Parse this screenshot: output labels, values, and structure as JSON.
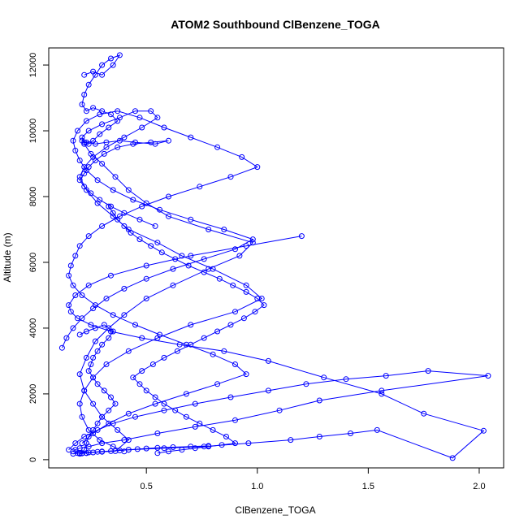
{
  "chart_data": {
    "type": "scatter",
    "title": "ATOM2 Southbound ClBenzene_TOGA",
    "xlabel": "ClBenzene_TOGA",
    "ylabel": "Altitude (m)",
    "xlim": [
      0.06,
      2.11
    ],
    "ylim": [
      -250,
      12520
    ],
    "xticks": [
      0.5,
      1.0,
      1.5,
      2.0
    ],
    "xtick_labels": [
      "0.5",
      "1.0",
      "1.5",
      "2.0"
    ],
    "yticks": [
      0,
      2000,
      4000,
      6000,
      8000,
      10000,
      12000
    ],
    "ytick_labels": [
      "0",
      "2000",
      "4000",
      "6000",
      "8000",
      "10000",
      "12000"
    ],
    "grid": false,
    "legend": "none",
    "series_style": "points-connected-by-lines",
    "color": "#0000ff",
    "series": [
      {
        "x": [
          0.17,
          0.2,
          0.24,
          0.28,
          0.36,
          0.42,
          0.37,
          0.3,
          0.26,
          0.22,
          0.2,
          0.23,
          0.27,
          0.33,
          0.4,
          0.5,
          0.62,
          0.78,
          0.92,
          0.98,
          0.78,
          0.6,
          0.5,
          0.42,
          0.36,
          0.3,
          0.25,
          0.22,
          0.21,
          0.24,
          0.3,
          0.38,
          0.45,
          0.52,
          0.55,
          0.48,
          0.4,
          0.32,
          0.26,
          0.22,
          0.2,
          0.23,
          0.28,
          0.35,
          0.42,
          0.55,
          0.66,
          0.8,
          0.95,
          1.02,
          0.9,
          0.7,
          0.55,
          0.42,
          0.32,
          0.26,
          0.22,
          0.2,
          0.21,
          0.24,
          0.29,
          0.35,
          0.4
        ],
        "y": [
          180,
          200,
          220,
          240,
          260,
          600,
          900,
          1300,
          1700,
          2100,
          2600,
          3100,
          3600,
          4000,
          4400,
          4900,
          5300,
          5800,
          6200,
          6600,
          7000,
          7400,
          7800,
          8200,
          8600,
          9000,
          9300,
          9600,
          9800,
          10000,
          10200,
          10400,
          10600,
          10600,
          10400,
          10100,
          9800,
          9500,
          9200,
          8900,
          8600,
          8200,
          7800,
          7400,
          7000,
          6600,
          6200,
          5800,
          5300,
          4900,
          4500,
          4100,
          3700,
          3300,
          2900,
          2500,
          2100,
          1700,
          1300,
          900,
          600,
          400,
          250
        ]
      },
      {
        "x": [
          0.15,
          0.18,
          0.22,
          0.28,
          0.35,
          0.45,
          0.58,
          0.72,
          0.88,
          1.05,
          1.22,
          1.4,
          1.58,
          1.77,
          2.04,
          1.56,
          1.28,
          1.1,
          0.9,
          0.72,
          0.55,
          0.4,
          0.3,
          0.24,
          0.2,
          0.18,
          0.17,
          0.19,
          0.23,
          0.3,
          0.42,
          0.58,
          0.76,
          0.96,
          1.15,
          1.28,
          1.42,
          1.54,
          1.88,
          2.02,
          1.75,
          1.56,
          1.3,
          1.05,
          0.85,
          0.65,
          0.48,
          0.34,
          0.25,
          0.19,
          0.16,
          0.15,
          0.18,
          0.24,
          0.34,
          0.5,
          0.7,
          0.95,
          1.2
        ],
        "y": [
          300,
          500,
          700,
          900,
          1100,
          1300,
          1500,
          1700,
          1900,
          2100,
          2300,
          2450,
          2550,
          2700,
          2550,
          2100,
          1800,
          1500,
          1200,
          1000,
          800,
          600,
          500,
          400,
          350,
          300,
          250,
          200,
          200,
          250,
          300,
          350,
          400,
          500,
          600,
          700,
          800,
          900,
          50,
          880,
          1400,
          2000,
          2500,
          3000,
          3300,
          3500,
          3700,
          3900,
          4100,
          4300,
          4500,
          4700,
          5000,
          5300,
          5600,
          5900,
          6200,
          6500,
          6800
        ]
      },
      {
        "x": [
          0.12,
          0.14,
          0.17,
          0.21,
          0.26,
          0.32,
          0.4,
          0.5,
          0.62,
          0.76,
          0.9,
          0.98,
          0.85,
          0.7,
          0.56,
          0.44,
          0.35,
          0.28,
          0.23,
          0.2,
          0.18,
          0.17,
          0.19,
          0.23,
          0.29,
          0.37,
          0.47,
          0.58,
          0.7,
          0.82,
          0.93,
          1.0,
          0.88,
          0.74,
          0.6,
          0.48,
          0.38,
          0.3,
          0.24,
          0.2,
          0.18,
          0.16,
          0.15,
          0.17,
          0.21,
          0.27,
          0.35,
          0.45,
          0.56,
          0.68,
          0.8,
          0.9,
          0.95,
          0.82,
          0.68,
          0.54,
          0.42,
          0.33,
          0.26,
          0.21
        ],
        "y": [
          3400,
          3700,
          4000,
          4300,
          4600,
          4900,
          5200,
          5500,
          5800,
          6100,
          6400,
          6700,
          7000,
          7300,
          7600,
          7900,
          8200,
          8500,
          8800,
          9100,
          9400,
          9700,
          10000,
          10300,
          10500,
          10600,
          10400,
          10100,
          9800,
          9500,
          9200,
          8900,
          8600,
          8300,
          8000,
          7700,
          7400,
          7100,
          6800,
          6500,
          6200,
          5900,
          5600,
          5300,
          5000,
          4700,
          4400,
          4100,
          3800,
          3500,
          3200,
          2900,
          2600,
          2300,
          2000,
          1700,
          1400,
          1100,
          800,
          500
        ]
      },
      {
        "x": [
          0.22,
          0.26,
          0.3,
          0.35,
          0.38,
          0.34,
          0.3,
          0.27,
          0.24,
          0.22,
          0.21,
          0.23,
          0.26,
          0.3,
          0.34,
          0.37,
          0.33,
          0.29,
          0.26,
          0.24,
          0.22,
          0.21,
          0.23,
          0.27,
          0.32,
          0.38,
          0.45,
          0.54,
          0.6,
          0.52,
          0.44,
          0.37,
          0.31,
          0.27,
          0.24,
          0.22,
          0.2,
          0.22,
          0.25,
          0.29,
          0.34,
          0.4,
          0.47,
          0.54
        ],
        "y": [
          11700,
          11800,
          11700,
          12000,
          12300,
          12200,
          12000,
          11700,
          11400,
          11100,
          10800,
          10600,
          10700,
          10600,
          10500,
          10300,
          10100,
          9900,
          9700,
          9600,
          9650,
          9700,
          9650,
          9600,
          9650,
          9700,
          9650,
          9600,
          9700,
          9650,
          9600,
          9500,
          9300,
          9100,
          8900,
          8700,
          8500,
          8300,
          8100,
          7900,
          7700,
          7500,
          7300,
          7100
        ]
      },
      {
        "x": [
          0.2,
          0.23,
          0.27,
          0.31,
          0.35,
          0.33,
          0.3,
          0.28,
          0.26,
          0.25,
          0.24,
          0.26,
          0.28,
          0.31,
          0.34,
          0.36,
          0.33,
          0.3,
          0.28,
          0.26,
          0.24,
          0.23,
          0.22,
          0.21,
          0.2,
          0.21,
          0.23,
          0.26,
          0.3,
          0.34,
          0.38,
          0.42,
          0.46,
          0.5,
          0.55,
          0.62,
          0.7,
          0.78
        ],
        "y": [
          3800,
          3900,
          4000,
          4100,
          3900,
          3700,
          3500,
          3300,
          3100,
          2900,
          2700,
          2500,
          2300,
          2100,
          1900,
          1700,
          1500,
          1300,
          1100,
          900,
          700,
          500,
          300,
          200,
          180,
          190,
          200,
          220,
          240,
          260,
          280,
          300,
          320,
          340,
          360,
          380,
          400,
          420
        ]
      },
      {
        "x": [
          0.55,
          0.6,
          0.66,
          0.72,
          0.78,
          0.84,
          0.9,
          0.86,
          0.8,
          0.74,
          0.68,
          0.63,
          0.58,
          0.54,
          0.5,
          0.47,
          0.44,
          0.48,
          0.53,
          0.58,
          0.64,
          0.7,
          0.76,
          0.82,
          0.88,
          0.94,
          0.99,
          1.03,
          1.0,
          0.95,
          0.89,
          0.83,
          0.76,
          0.69,
          0.63,
          0.57,
          0.52,
          0.47,
          0.43,
          0.4,
          0.37,
          0.35,
          0.33
        ],
        "y": [
          200,
          250,
          300,
          350,
          400,
          450,
          500,
          700,
          900,
          1100,
          1300,
          1500,
          1700,
          1900,
          2100,
          2300,
          2500,
          2700,
          2900,
          3100,
          3300,
          3500,
          3700,
          3900,
          4100,
          4300,
          4500,
          4700,
          4900,
          5100,
          5300,
          5500,
          5700,
          5900,
          6100,
          6300,
          6500,
          6700,
          6900,
          7100,
          7300,
          7500,
          7700
        ]
      }
    ]
  }
}
